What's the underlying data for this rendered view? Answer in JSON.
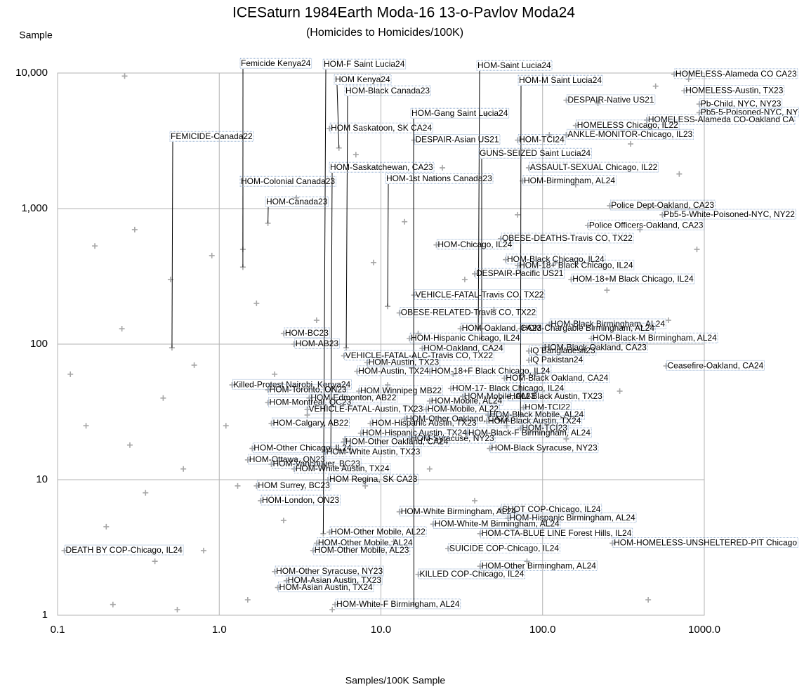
{
  "chart_data": {
    "type": "scatter",
    "title": "ICESaturn 1984Earth Moda-16 13-o-Pavlov Moda24",
    "subtitle": "(Homicides to Homicides/100K)",
    "y_axis_title": "Sample",
    "x_axis_title": "Samples/100K Sample",
    "log_x": true,
    "log_y": true,
    "grid": true,
    "color": "#a6a6a6",
    "xlim": [
      0.1,
      1000
    ],
    "ylim": [
      1,
      10000
    ],
    "xticks": [
      0.1,
      {
        "value": 1,
        "label": "1.0"
      },
      {
        "value": 10,
        "label": "10.0"
      },
      {
        "value": 100,
        "label": "100.0"
      },
      {
        "value": 1000,
        "label": "1000.0"
      }
    ],
    "yticks": [
      1,
      10,
      100,
      {
        "value": 1000,
        "label": "1,000"
      },
      {
        "value": 10000,
        "label": "10,000"
      }
    ],
    "x": [
      1.4,
      4.4,
      40,
      5.5,
      73,
      6.1,
      650,
      750,
      140,
      930,
      16,
      930,
      440,
      160,
      4.8,
      140,
      0.51,
      16,
      70,
      42,
      4.9,
      82,
      11,
      1.4,
      75,
      2.0,
      260,
      550,
      190,
      55,
      22,
      59,
      70,
      38,
      150,
      16,
      13,
      110,
      31,
      73,
      2.5,
      200,
      15,
      2.9,
      18,
      100,
      82,
      5.9,
      82,
      8.2,
      580,
      7.1,
      20,
      58,
      1.2,
      2.0,
      7.3,
      27,
      3.6,
      32,
      61,
      2.0,
      20,
      3.5,
      19,
      76,
      46,
      14,
      2.1,
      8.6,
      45,
      73,
      7.5,
      15,
      34,
      5.9,
      47,
      1.6,
      4.5,
      1.5,
      2.1,
      2.9,
      4.7,
      1.7,
      1.8,
      13,
      55,
      61,
      21,
      4.8,
      41,
      270,
      4.0,
      0.11,
      26,
      3.8,
      41,
      2.2,
      17,
      2.6,
      2.3,
      5.2,
      0.12,
      0.15,
      0.17,
      0.2,
      0.22,
      0.25,
      0.28,
      0.3,
      0.35,
      0.4,
      0.45,
      0.5,
      0.55,
      0.6,
      0.7,
      0.8,
      0.9,
      1.1,
      1.3,
      1.5,
      1.7,
      2.2,
      2.5,
      3,
      3.5,
      4,
      5,
      6,
      7,
      8,
      9,
      11,
      12,
      14,
      17,
      20,
      24,
      28,
      33,
      38,
      45,
      50,
      60,
      70,
      80,
      90,
      110,
      120,
      140,
      160,
      180,
      220,
      250,
      300,
      350,
      400,
      450,
      500,
      600,
      700,
      800,
      900,
      0.26
    ],
    "values": [
      370,
      4.0,
      130,
      2800,
      30,
      94,
      9800,
      7400,
      6300,
      5900,
      1.2,
      5100,
      4500,
      4100,
      3900,
      3500,
      94,
      3200,
      3200,
      110,
      17,
      2000,
      190,
      500,
      1600,
      780,
      1050,
      900,
      750,
      600,
      540,
      420,
      380,
      330,
      300,
      230,
      170,
      140,
      130,
      130,
      120,
      110,
      110,
      100,
      93,
      94,
      89,
      82,
      76,
      73,
      69,
      63,
      63,
      56,
      50,
      46,
      45,
      47,
      40,
      41,
      41,
      37,
      38,
      33,
      33,
      34,
      30,
      28,
      26,
      26,
      27,
      24,
      22,
      20,
      22,
      19,
      17,
      17,
      16,
      14,
      13,
      12,
      10,
      9.0,
      7.0,
      5.8,
      6.0,
      5.2,
      4.7,
      4.1,
      4.0,
      3.4,
      3.4,
      3.0,
      3.1,
      3.0,
      2.3,
      2.1,
      2.0,
      1.8,
      1.6,
      1.2,
      60,
      25,
      530,
      4.5,
      1.2,
      130,
      18,
      700,
      8,
      2.5,
      40,
      300,
      1.1,
      12,
      70,
      3,
      450,
      25,
      9,
      1.3,
      200,
      60,
      5,
      1200,
      30,
      150,
      1.1,
      20,
      2500,
      9,
      400,
      50,
      3.5,
      800,
      120,
      12,
      2000,
      60,
      300,
      7,
      5000,
      180,
      25,
      900,
      2.5,
      60,
      3500,
      400,
      20,
      1500,
      90,
      6000,
      250,
      45,
      3000,
      700,
      1.3,
      8000,
      150,
      1800,
      9000,
      500,
      9500
    ],
    "point_labels": [
      "Femicide Kenya24",
      "HOM-F Saint Lucia24",
      "HOM-Saint Lucia24",
      "HOM Kenya24",
      "HOM-M Saint Lucia24",
      "HOM-Black Canada23",
      "HOMELESS-Alameda CO CA23",
      "HOMELESS-Austin, TX23",
      "DESPAIR-Native US21",
      "Pb-Child, NYC, NY23",
      "HOM-Gang Saint Lucia24",
      "Pb5-5-Poisoned-NYC, NY",
      "HOMELESS-Alameda CO-Oakland CA",
      "HOMELESS Chicago, IL22",
      "HOM Saskatoon, SK CA24",
      "ANKLE-MONITOR-Chicago, IL23",
      "FEMICIDE-Canada22",
      "DESPAIR-Asian US21",
      "HOM-TCI24",
      "GUNS-SEIZED Saint Lucia24",
      "HOM-Saskatchewan, CA23",
      "ASSAULT-SEXUAL Chicago, IL22",
      "HOM-1st Nations Canada23",
      "HOM-Colonial Canada23",
      "HOM-Birmingham, AL24",
      "HOM-Canada23",
      "Police Dept-Oakland, CA23",
      "Pb5-5-White-Poisoned-NYC, NY22",
      "Police Officers-Oakland, CA23",
      "OBESE-DEATHS-Travis CO, TX22",
      "HOM-Chicago, IL24",
      "HOM-Black Chicago, IL24",
      "HOM-18+ Black Chicago, IL24",
      "DESPAIR-Pacific US21",
      "HOM-18+M Black Chicago, IL24",
      "VEHICLE-FATAL-Travis CO, TX22",
      "OBESE-RELATED-Travis CO, TX22",
      "HOM-Black Birmingham, AL24",
      "HOM-Oakland, CA23",
      "HOM-Chargable Birmingham, AL24",
      "HOM-BC23",
      "HOM-Black-M Birmingham, AL24",
      "HOM-Hispanic Chicago, IL24",
      "HOM-AB23",
      "HOM-Oakland, CA24",
      "HOM-Black Oakland, CA23",
      "IQ Bangladesh23",
      "VEHICLE-FATAL-ALC-Travis CO, TX22",
      "IQ Pakistan24",
      "HOM-Austin, TX23",
      "Ceasefire-Oakland, CA24",
      "HOM-Austin, TX24",
      "HOM-18+F Black Chicago, IL24",
      "HOM-Black Oakland, CA24",
      "Killed-Protest Nairobi, Kenya24",
      "HOM-Toronto, ON23",
      "HOM Winnipeg MB22",
      "HOM-17- Black Chicago, IL24",
      "HOM-Edmonton, AB22",
      "HOM-Mobile, AL23",
      "HOM-Black Austin, TX23",
      "HOM-Montreal, QC23",
      "HOM-Mobile, AL24",
      "VEHICLE-FATAL-Austin, TX23",
      "HOM-Mobile, AL22",
      "HOM-TCI22",
      "HOM-Black Mobile, AL24",
      "HOM-Other Oakland, CA23",
      "HOM-Calgary, AB22",
      "HOM-Hispanic Austin, TX23",
      "HOM-Black Austin, TX24",
      "HOM-TCI23",
      "HOM-Hispanic Austin, TX24",
      "HOM-Syracuse, NY23",
      "HOM-Black-F Birmingham, AL24",
      "HOM-Other Oakland, CA24",
      "HOM-Black Syracuse, NY23",
      "HOM-Other Chicago, IL24",
      "HOM-White Austin, TX23",
      "HOM-Ottawa, ON23",
      "HOM-Vancouver, BC23",
      "HOM-White Austin, TX24",
      "HOM Regina, SK CA23",
      "HOM Surrey, BC23",
      "HOM-London, ON23",
      "HOM-White Birmingham, AL24",
      "SHOT COP-Chicago, IL24",
      "HOM-Hispanic Birmingham, AL24",
      "HOM-White-M Birmingham, AL24",
      "HOM-Other Mobile, AL22",
      "HOM-CTA-BLUE LINE Forest Hills, IL24",
      "HOM-HOMELESS-UNSHELTERED-PIT Chicago",
      "HOM-Other Mobile, AL24",
      "DEATH BY COP-Chicago, IL24",
      "SUICIDE COP-Chicago, IL24",
      "HOM-Other Mobile, AL23",
      "HOM-Other Birmingham, AL24",
      "HOM-Other Syracuse, NY23",
      "KILLED COP-Chicago, IL24",
      "HOM-Asian Austin, TX23",
      "HOM-Asian Austin, TX24",
      "HOM-White-F Birmingham, AL24",
      null,
      null,
      null,
      null,
      null,
      null,
      null,
      null,
      null,
      null,
      null,
      null,
      null,
      null,
      null,
      null,
      null,
      null,
      null,
      null,
      null,
      null,
      null,
      null,
      null,
      null,
      null,
      null,
      null,
      null,
      null,
      null,
      null,
      null,
      null,
      null,
      null,
      null,
      null,
      null,
      null,
      null,
      null,
      null,
      null,
      null,
      null,
      null,
      null,
      null,
      null,
      null,
      null,
      null,
      null,
      null,
      null,
      null,
      null,
      null,
      null,
      null,
      null
    ]
  }
}
